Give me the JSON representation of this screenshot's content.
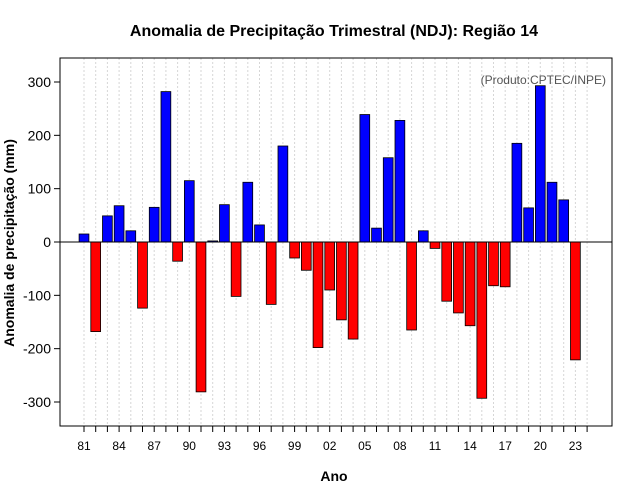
{
  "chart_data": {
    "type": "bar",
    "title": "Anomalia de Precipitação Trimestral (NDJ): Região 14",
    "xlabel": "Ano",
    "ylabel": "Anomalia de precipitação (mm)",
    "credit": "(Produto:CPTEC/INPE)",
    "ylim": [
      -345,
      345
    ],
    "yticks": [
      -300,
      -200,
      -100,
      0,
      100,
      200,
      300
    ],
    "xtick_labels": [
      "81",
      "84",
      "87",
      "90",
      "93",
      "96",
      "99",
      "02",
      "05",
      "08",
      "11",
      "14",
      "17",
      "20",
      "23"
    ],
    "positive_color": "#0000ff",
    "negative_color": "#ff0000",
    "years": [
      1981,
      1982,
      1983,
      1984,
      1985,
      1986,
      1987,
      1988,
      1989,
      1990,
      1991,
      1992,
      1993,
      1994,
      1995,
      1996,
      1997,
      1998,
      1999,
      2000,
      2001,
      2002,
      2003,
      2004,
      2005,
      2006,
      2007,
      2008,
      2009,
      2010,
      2011,
      2012,
      2013,
      2014,
      2015,
      2016,
      2017,
      2018,
      2019,
      2020,
      2021,
      2022,
      2023
    ],
    "values": [
      15,
      -168,
      49,
      68,
      21,
      -124,
      65,
      282,
      -36,
      115,
      -281,
      2,
      70,
      -102,
      112,
      32,
      -117,
      180,
      -30,
      -53,
      -198,
      -90,
      -146,
      -182,
      239,
      26,
      158,
      228,
      -165,
      21,
      -12,
      -111,
      -133,
      -157,
      -293,
      -82,
      -84,
      185,
      64,
      293,
      112,
      79,
      -221
    ]
  }
}
